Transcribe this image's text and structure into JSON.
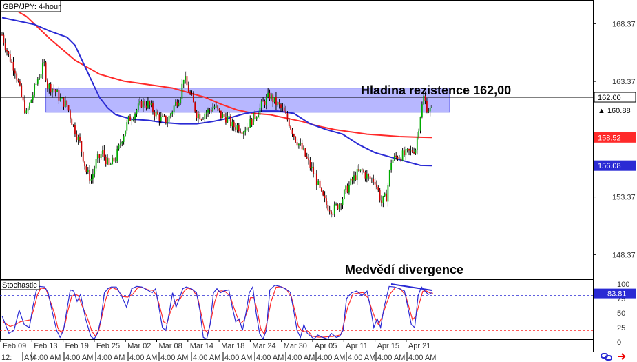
{
  "chart_data": {
    "type": "candlestick",
    "title": "GBP/JPY: 4-hour",
    "price_axis": {
      "ylim": [
        146.3,
        170.3
      ],
      "ticks": [
        168.37,
        163.37,
        153.37,
        148.37
      ],
      "tick_labels": [
        "168.37",
        "163.37",
        "153.37",
        "148.37"
      ]
    },
    "time_axis": {
      "date_labels": [
        "Feb 09",
        "Feb 13",
        "Feb 19",
        "Feb 25",
        "Mar 02",
        "Mar 08",
        "Mar 14",
        "Mar 18",
        "Mar 24",
        "Mar 30",
        "Apr 05",
        "Apr 11",
        "Apr 15",
        "Apr 21"
      ],
      "time_labels": [
        "12:",
        "AM",
        "4:00 AM",
        "4:00 AM",
        "4:00 AM",
        "4:00 AM",
        "4:00 AM",
        "4:00 AM",
        "4:00 AM",
        "4:00 AM",
        "4:00 AM",
        "4:00 AM",
        "4:00 AM",
        "4:00 AM",
        "4:00 AM"
      ]
    },
    "close_path": [
      [
        0,
        167.4
      ],
      [
        4,
        165.6
      ],
      [
        8,
        164.4
      ],
      [
        12,
        162.0
      ],
      [
        15,
        160.5
      ],
      [
        18,
        161.8
      ],
      [
        22,
        163.6
      ],
      [
        26,
        164.8
      ],
      [
        28,
        163.0
      ],
      [
        32,
        162.7
      ],
      [
        36,
        161.8
      ],
      [
        40,
        161.3
      ],
      [
        44,
        159.5
      ],
      [
        48,
        158.0
      ],
      [
        52,
        155.6
      ],
      [
        55,
        154.9
      ],
      [
        58,
        156.4
      ],
      [
        62,
        157.2
      ],
      [
        66,
        156.0
      ],
      [
        70,
        156.7
      ],
      [
        74,
        158.5
      ],
      [
        78,
        160.0
      ],
      [
        82,
        160.7
      ],
      [
        86,
        161.5
      ],
      [
        90,
        161.4
      ],
      [
        94,
        160.7
      ],
      [
        98,
        160.1
      ],
      [
        102,
        160.0
      ],
      [
        106,
        161.2
      ],
      [
        110,
        162.2
      ],
      [
        112,
        163.8
      ],
      [
        114,
        163.0
      ],
      [
        117,
        161.8
      ],
      [
        120,
        160.6
      ],
      [
        123,
        160.4
      ],
      [
        127,
        160.8
      ],
      [
        131,
        161.2
      ],
      [
        135,
        160.4
      ],
      [
        139,
        160.2
      ],
      [
        142,
        159.5
      ],
      [
        145,
        159.5
      ],
      [
        149,
        159.2
      ],
      [
        153,
        159.8
      ],
      [
        157,
        160.6
      ],
      [
        161,
        161.5
      ],
      [
        165,
        162.1
      ],
      [
        169,
        161.5
      ],
      [
        173,
        160.9
      ],
      [
        177,
        159.8
      ],
      [
        181,
        158.4
      ],
      [
        185,
        157.5
      ],
      [
        189,
        156.3
      ],
      [
        193,
        155.2
      ],
      [
        197,
        153.5
      ],
      [
        200,
        152.7
      ],
      [
        204,
        152.2
      ],
      [
        208,
        152.8
      ],
      [
        212,
        153.9
      ],
      [
        216,
        154.8
      ],
      [
        219,
        155.4
      ],
      [
        222,
        155.6
      ],
      [
        226,
        155.0
      ],
      [
        230,
        154.8
      ],
      [
        234,
        152.9
      ],
      [
        237,
        153.4
      ],
      [
        240,
        156.5
      ],
      [
        244,
        156.9
      ],
      [
        248,
        157.0
      ],
      [
        252,
        157.3
      ],
      [
        255,
        157.6
      ],
      [
        258,
        160.5
      ],
      [
        260,
        162.0
      ],
      [
        262,
        161.1
      ],
      [
        265,
        160.8
      ]
    ],
    "close_path_x_range": [
      0,
      265
    ],
    "series": [
      {
        "name": "",
        "color": "#ff2a2a",
        "values": [
          [
            0,
            170.2
          ],
          [
            15,
            169.0
          ],
          [
            30,
            167.0
          ],
          [
            45,
            165.2
          ],
          [
            60,
            164.0
          ],
          [
            75,
            163.4
          ],
          [
            90,
            163.1
          ],
          [
            105,
            162.8
          ],
          [
            115,
            162.4
          ],
          [
            125,
            162.0
          ],
          [
            135,
            161.4
          ],
          [
            145,
            160.9
          ],
          [
            155,
            160.6
          ],
          [
            165,
            160.5
          ],
          [
            175,
            160.2
          ],
          [
            185,
            159.9
          ],
          [
            195,
            159.5
          ],
          [
            205,
            159.2
          ],
          [
            215,
            159.0
          ],
          [
            225,
            158.8
          ],
          [
            235,
            158.7
          ],
          [
            245,
            158.6
          ],
          [
            255,
            158.55
          ],
          [
            265,
            158.52
          ]
        ]
      },
      {
        "name": "",
        "color": "#2a2ad4",
        "values": [
          [
            0,
            168.9
          ],
          [
            10,
            168.6
          ],
          [
            20,
            168.3
          ],
          [
            30,
            167.7
          ],
          [
            40,
            167.2
          ],
          [
            45,
            166.5
          ],
          [
            50,
            165.0
          ],
          [
            55,
            163.5
          ],
          [
            60,
            162.0
          ],
          [
            65,
            161.1
          ],
          [
            70,
            160.5
          ],
          [
            80,
            160.1
          ],
          [
            90,
            160.0
          ],
          [
            100,
            159.8
          ],
          [
            110,
            159.7
          ],
          [
            120,
            159.7
          ],
          [
            130,
            159.9
          ],
          [
            140,
            160.2
          ],
          [
            150,
            160.6
          ],
          [
            160,
            160.8
          ],
          [
            170,
            160.8
          ],
          [
            180,
            160.6
          ],
          [
            190,
            159.7
          ],
          [
            200,
            159.2
          ],
          [
            210,
            158.8
          ],
          [
            220,
            157.9
          ],
          [
            230,
            157.2
          ],
          [
            240,
            156.8
          ],
          [
            250,
            156.4
          ],
          [
            258,
            156.1
          ],
          [
            265,
            156.08
          ]
        ]
      }
    ],
    "resistance_zone": {
      "low": 160.7,
      "high": 162.8,
      "x_start": 27,
      "x_end": 276
    },
    "reference_line": 162.0,
    "annotations": [
      "Hladina rezistence 162,00",
      "Medvědí divergence"
    ],
    "price_tags": [
      {
        "value": 162.0,
        "text": "162.00",
        "bg": "#ffffff",
        "fg": "#000000",
        "border": "#000000"
      },
      {
        "value": 160.88,
        "text": "▲ 160.88",
        "bg": "#ffffff",
        "fg": "#000000",
        "border": "#ffffff"
      },
      {
        "value": 158.52,
        "text": "158.52",
        "bg": "#ff2a2a",
        "fg": "#ffffff",
        "border": "#ff2a2a"
      },
      {
        "value": 156.08,
        "text": "156.08",
        "bg": "#2a2ad4",
        "fg": "#ffffff",
        "border": "#2a2ad4"
      }
    ],
    "colors": {
      "up": "#00aa00",
      "down": "#cc0000",
      "wick": "#000000",
      "zone": "#9999ff"
    },
    "stochastic": {
      "title": "Stochastic",
      "ylim": [
        0,
        100
      ],
      "ticks": [
        100,
        75,
        50,
        25,
        0
      ],
      "tick_labels": [
        "100",
        "75",
        "50",
        "25",
        "0"
      ],
      "levels": [
        80,
        20
      ],
      "current": {
        "value": 83.81,
        "text": "83.81"
      },
      "k_color": "#2a2ad4",
      "d_color": "#ff2a2a",
      "k_path": [
        [
          0,
          45
        ],
        [
          4,
          15
        ],
        [
          7,
          20
        ],
        [
          10,
          55
        ],
        [
          13,
          30
        ],
        [
          16,
          25
        ],
        [
          18,
          60
        ],
        [
          20,
          88
        ],
        [
          22,
          96
        ],
        [
          25,
          95
        ],
        [
          27,
          85
        ],
        [
          30,
          45
        ],
        [
          32,
          20
        ],
        [
          34,
          8
        ],
        [
          36,
          20
        ],
        [
          38,
          55
        ],
        [
          40,
          90
        ],
        [
          42,
          88
        ],
        [
          44,
          70
        ],
        [
          46,
          82
        ],
        [
          49,
          40
        ],
        [
          52,
          10
        ],
        [
          54,
          5
        ],
        [
          56,
          15
        ],
        [
          58,
          40
        ],
        [
          60,
          85
        ],
        [
          62,
          92
        ],
        [
          64,
          95
        ],
        [
          67,
          95
        ],
        [
          70,
          80
        ],
        [
          73,
          60
        ],
        [
          76,
          92
        ],
        [
          79,
          96
        ],
        [
          82,
          95
        ],
        [
          85,
          90
        ],
        [
          88,
          85
        ],
        [
          90,
          92
        ],
        [
          92,
          60
        ],
        [
          94,
          25
        ],
        [
          96,
          20
        ],
        [
          98,
          50
        ],
        [
          100,
          85
        ],
        [
          102,
          60
        ],
        [
          104,
          75
        ],
        [
          106,
          92
        ],
        [
          108,
          95
        ],
        [
          111,
          92
        ],
        [
          114,
          85
        ],
        [
          116,
          55
        ],
        [
          118,
          8
        ],
        [
          120,
          5
        ],
        [
          122,
          30
        ],
        [
          124,
          85
        ],
        [
          126,
          92
        ],
        [
          128,
          85
        ],
        [
          130,
          88
        ],
        [
          133,
          90
        ],
        [
          135,
          60
        ],
        [
          137,
          35
        ],
        [
          139,
          40
        ],
        [
          141,
          20
        ],
        [
          143,
          50
        ],
        [
          145,
          85
        ],
        [
          147,
          95
        ],
        [
          149,
          50
        ],
        [
          151,
          15
        ],
        [
          153,
          5
        ],
        [
          155,
          20
        ],
        [
          157,
          90
        ],
        [
          160,
          98
        ],
        [
          163,
          96
        ],
        [
          166,
          92
        ],
        [
          169,
          86
        ],
        [
          171,
          55
        ],
        [
          173,
          20
        ],
        [
          175,
          8
        ],
        [
          177,
          30
        ],
        [
          179,
          15
        ],
        [
          181,
          10
        ],
        [
          183,
          5
        ],
        [
          185,
          12
        ],
        [
          188,
          8
        ],
        [
          191,
          5
        ],
        [
          193,
          15
        ],
        [
          196,
          8
        ],
        [
          198,
          10
        ],
        [
          200,
          20
        ],
        [
          202,
          75
        ],
        [
          205,
          85
        ],
        [
          208,
          88
        ],
        [
          211,
          80
        ],
        [
          214,
          88
        ],
        [
          216,
          60
        ],
        [
          218,
          25
        ],
        [
          220,
          40
        ],
        [
          222,
          25
        ],
        [
          224,
          60
        ],
        [
          227,
          96
        ],
        [
          230,
          95
        ],
        [
          233,
          92
        ],
        [
          236,
          88
        ],
        [
          238,
          60
        ],
        [
          240,
          30
        ],
        [
          242,
          25
        ],
        [
          244,
          80
        ],
        [
          246,
          95
        ],
        [
          248,
          88
        ],
        [
          250,
          82
        ],
        [
          252,
          85
        ]
      ]
    }
  }
}
